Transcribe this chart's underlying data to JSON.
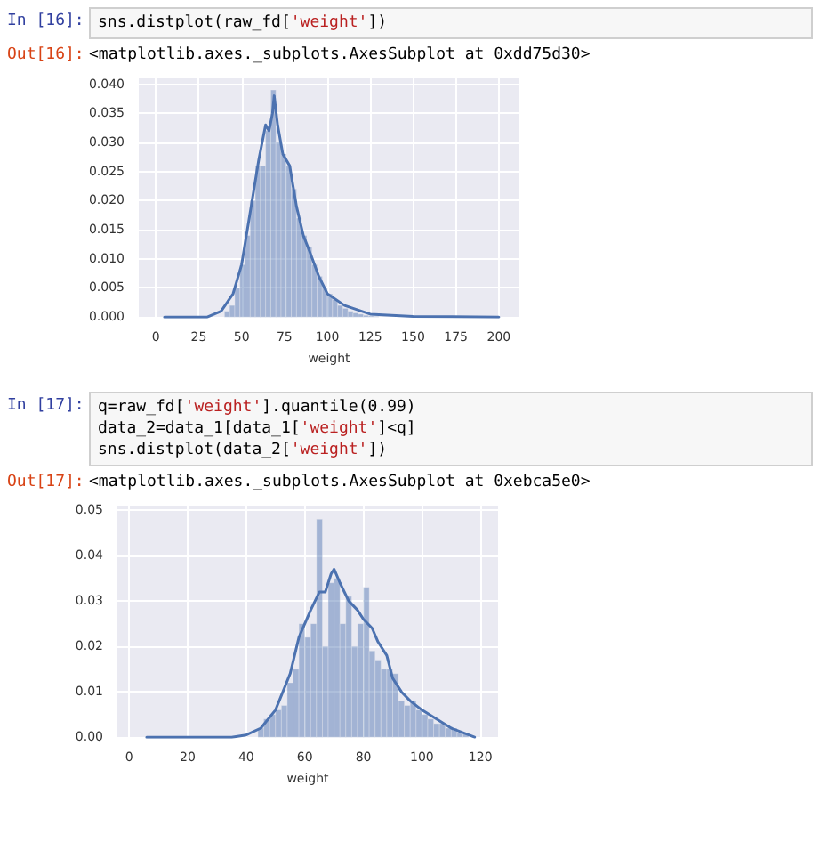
{
  "chart_data": [
    {
      "type": "histogram",
      "xlabel": "weight",
      "color": "#4c72b0",
      "grid": true,
      "annotations": [
        "In [16]:",
        "sns.distplot(raw_fd['weight'])",
        "Out[16]:",
        "<matplotlib.axes._subplots.AxesSubplot at 0xdd75d30>"
      ],
      "bins": [
        40,
        43,
        46,
        49,
        52,
        55,
        58,
        61,
        64,
        67,
        70,
        73,
        76,
        79,
        82,
        85,
        88,
        91,
        94,
        97,
        100,
        103,
        106,
        109,
        112,
        115,
        118,
        121,
        124,
        127,
        130
      ],
      "values": [
        0.001,
        0.002,
        0.005,
        0.009,
        0.014,
        0.02,
        0.026,
        0.026,
        0.032,
        0.039,
        0.03,
        0.028,
        0.026,
        0.022,
        0.017,
        0.014,
        0.012,
        0.009,
        0.007,
        0.005,
        0.004,
        0.003,
        0.002,
        0.0015,
        0.001,
        0.0007,
        0.0005,
        0.0003,
        0.0002,
        0.0001
      ],
      "series": [
        {
          "type": "line",
          "color": "#4c72b0",
          "x": [
            5,
            30,
            38,
            45,
            50,
            55,
            60,
            64,
            66,
            68,
            69,
            71,
            74,
            78,
            82,
            86,
            90,
            95,
            100,
            110,
            125,
            150,
            200
          ],
          "values": [
            0,
            0,
            0.001,
            0.004,
            0.009,
            0.018,
            0.027,
            0.033,
            0.032,
            0.035,
            0.038,
            0.033,
            0.028,
            0.026,
            0.019,
            0.014,
            0.011,
            0.007,
            0.004,
            0.002,
            0.0005,
            0.0001,
            0
          ]
        }
      ],
      "xlim": [
        -10,
        212
      ],
      "xticks": [
        0,
        25,
        50,
        75,
        100,
        125,
        150,
        175,
        200
      ],
      "ylim": [
        0,
        0.041
      ],
      "yticks": [
        {
          "value": 0,
          "label": "0.000"
        },
        {
          "value": 0.005,
          "label": "0.005"
        },
        {
          "value": 0.01,
          "label": "0.010"
        },
        {
          "value": 0.015,
          "label": "0.015"
        },
        {
          "value": 0.02,
          "label": "0.020"
        },
        {
          "value": 0.025,
          "label": "0.025"
        },
        {
          "value": 0.03,
          "label": "0.030"
        },
        {
          "value": 0.035,
          "label": "0.035"
        },
        {
          "value": 0.04,
          "label": "0.040"
        }
      ]
    },
    {
      "type": "histogram",
      "xlabel": "weight",
      "color": "#4c72b0",
      "grid": true,
      "annotations": [
        "In [17]:",
        "q=raw_fd['weight'].quantile(0.99)\ndata_2=data_1[data_1['weight']<q]\nsns.distplot(data_2['weight'])",
        "Out[17]:",
        "<matplotlib.axes._subplots.AxesSubplot at 0xebca5e0>"
      ],
      "bins": [
        44,
        46,
        48,
        50,
        52,
        54,
        56,
        58,
        60,
        62,
        64,
        66,
        68,
        70,
        72,
        74,
        76,
        78,
        80,
        82,
        84,
        86,
        88,
        90,
        92,
        94,
        96,
        98,
        100,
        102,
        104,
        106,
        108,
        110,
        112,
        114,
        116,
        118
      ],
      "values": [
        0.002,
        0.004,
        0.005,
        0.006,
        0.007,
        0.012,
        0.015,
        0.025,
        0.022,
        0.025,
        0.048,
        0.02,
        0.034,
        0.035,
        0.025,
        0.031,
        0.02,
        0.025,
        0.033,
        0.019,
        0.017,
        0.015,
        0.015,
        0.014,
        0.008,
        0.007,
        0.008,
        0.006,
        0.005,
        0.004,
        0.003,
        0.003,
        0.002,
        0.002,
        0.001,
        0.001,
        null
      ],
      "series": [
        {
          "type": "line",
          "color": "#4c72b0",
          "x": [
            6,
            35,
            40,
            45,
            50,
            55,
            58,
            62,
            65,
            67,
            69,
            70,
            72,
            75,
            78,
            80,
            83,
            85,
            88,
            90,
            93,
            96,
            100,
            105,
            110,
            118
          ],
          "values": [
            0,
            0,
            0.0005,
            0.002,
            0.006,
            0.014,
            0.022,
            0.028,
            0.032,
            0.032,
            0.036,
            0.037,
            0.034,
            0.03,
            0.028,
            0.026,
            0.024,
            0.021,
            0.018,
            0.013,
            0.01,
            0.008,
            0.006,
            0.004,
            0.002,
            0
          ]
        }
      ],
      "xlim": [
        -4,
        126
      ],
      "xticks": [
        0,
        20,
        40,
        60,
        80,
        100,
        120
      ],
      "ylim": [
        0,
        0.051
      ],
      "yticks": [
        {
          "value": 0,
          "label": "0.00"
        },
        {
          "value": 0.01,
          "label": "0.01"
        },
        {
          "value": 0.02,
          "label": "0.02"
        },
        {
          "value": 0.03,
          "label": "0.03"
        },
        {
          "value": 0.04,
          "label": "0.04"
        },
        {
          "value": 0.05,
          "label": "0.05"
        }
      ]
    }
  ]
}
